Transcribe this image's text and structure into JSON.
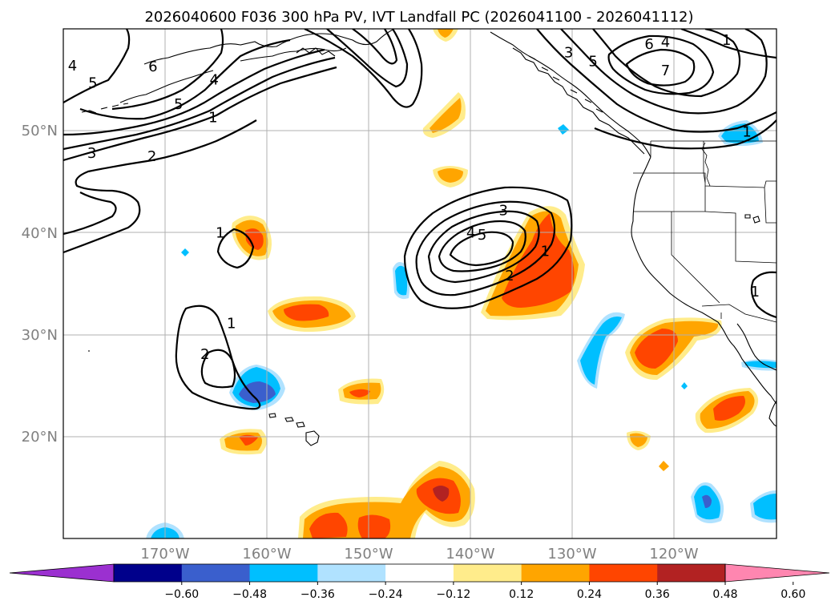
{
  "title": "2026040600 F036 300 hPa PV, IVT Landfall PC (2026041100 - 2026041112)",
  "map": {
    "lon_range": [
      -180,
      -110
    ],
    "lat_range": [
      10,
      60
    ],
    "lon_ticks": [
      -170,
      -160,
      -150,
      -140,
      -130,
      -120
    ],
    "lon_tick_labels": [
      "170°W",
      "160°W",
      "150°W",
      "140°W",
      "130°W",
      "120°W"
    ],
    "lat_ticks": [
      20,
      30,
      40,
      50
    ],
    "lat_tick_labels": [
      "20°N",
      "30°N",
      "40°N",
      "50°N"
    ],
    "grid": true
  },
  "colorbar": {
    "tick_labels": [
      "−0.60",
      "−0.48",
      "−0.36",
      "−0.24",
      "−0.12",
      "0.12",
      "0.24",
      "0.36",
      "0.48",
      "0.60"
    ],
    "colors": [
      "#9b30d0",
      "#00008b",
      "#3a5fcd",
      "#00bfff",
      "#b0e2ff",
      "#ffffff",
      "#ffec8b",
      "#ffa500",
      "#ff4500",
      "#b22222",
      "#ff86b0"
    ],
    "extend": "both"
  },
  "contour_labels": [
    {
      "text": "4",
      "lon": -179.1,
      "lat": 56.4
    },
    {
      "text": "5",
      "lon": -177.1,
      "lat": 54.7
    },
    {
      "text": "6",
      "lon": -171.2,
      "lat": 56.3
    },
    {
      "text": "4",
      "lon": -165.2,
      "lat": 55.0
    },
    {
      "text": "5",
      "lon": -168.7,
      "lat": 52.6
    },
    {
      "text": "1",
      "lon": -165.3,
      "lat": 51.3
    },
    {
      "text": "3",
      "lon": -177.2,
      "lat": 47.8
    },
    {
      "text": "2",
      "lon": -171.3,
      "lat": 47.5
    },
    {
      "text": "1",
      "lon": -164.6,
      "lat": 40.0
    },
    {
      "text": "3",
      "lon": -136.8,
      "lat": 42.2
    },
    {
      "text": "4",
      "lon": -140.0,
      "lat": 40.0
    },
    {
      "text": "5",
      "lon": -138.9,
      "lat": 39.8
    },
    {
      "text": "1",
      "lon": -132.7,
      "lat": 38.2
    },
    {
      "text": "2",
      "lon": -136.2,
      "lat": 35.8
    },
    {
      "text": "1",
      "lon": -163.5,
      "lat": 31.1
    },
    {
      "text": "2",
      "lon": -166.1,
      "lat": 28.1
    },
    {
      "text": "3",
      "lon": -130.4,
      "lat": 57.7
    },
    {
      "text": "5",
      "lon": -128.0,
      "lat": 56.8
    },
    {
      "text": "6",
      "lon": -122.5,
      "lat": 58.5
    },
    {
      "text": "4",
      "lon": -120.9,
      "lat": 58.7
    },
    {
      "text": "7",
      "lon": -120.9,
      "lat": 55.9
    },
    {
      "text": "1",
      "lon": -114.9,
      "lat": 58.9
    },
    {
      "text": "1",
      "lon": -112.9,
      "lat": 49.9
    },
    {
      "text": "1",
      "lon": -112.1,
      "lat": 34.2
    }
  ]
}
